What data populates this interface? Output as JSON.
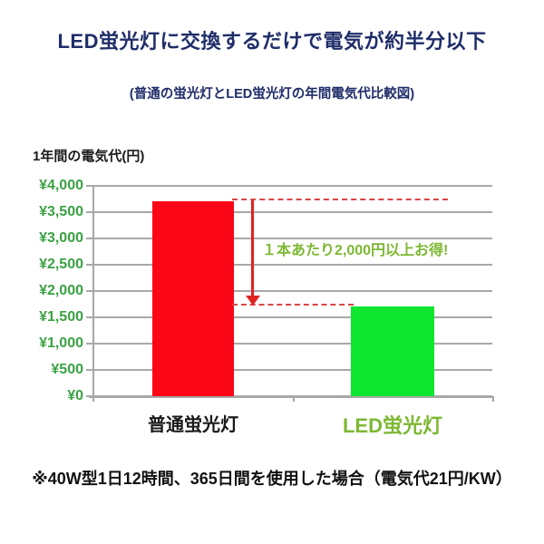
{
  "title": "LED蛍光灯に交換するだけで電気が約半分以下",
  "subtitle": "(普通の蛍光灯とLED蛍光灯の年間電気代比較図)",
  "footnote": "※40W型1日12時間、365日間を使用した場合（電気代21円/KW）",
  "colors": {
    "title_navy": "#1f2d69",
    "bar_red": "#fb0617",
    "bar_green": "#0de62f",
    "tick_green": "#3ba144",
    "label_yellow_green": "#7cb832",
    "category_black": "#1a1a1a",
    "grid_gray": "#a8a8a8",
    "dash_red": "#d94545",
    "arrow_red": "#e02222"
  },
  "chart_data": {
    "type": "bar",
    "title": "1年間の電気代(円)",
    "categories": [
      "普通蛍光灯",
      "LED蛍光灯"
    ],
    "values": [
      3700,
      1700
    ],
    "bar_colors": [
      "#fb0617",
      "#0de62f"
    ],
    "category_label_colors": [
      "#1a1a1a",
      "#7cb832"
    ],
    "category_label_sizes": [
      20,
      22
    ],
    "xlabel": "",
    "ylabel": "1年間の電気代(円)",
    "ylim": [
      0,
      4000
    ],
    "ytick_step": 500,
    "ytick_labels": [
      "¥0",
      "¥500",
      "¥1,000",
      "¥1,500",
      "¥2,000",
      "¥2,500",
      "¥3,000",
      "¥3,500",
      "¥4,000"
    ],
    "grid": true,
    "legend": false,
    "annotation": {
      "text": "１本あたり2,000円以上お得!",
      "from_value": 3700,
      "to_value": 1700
    }
  }
}
